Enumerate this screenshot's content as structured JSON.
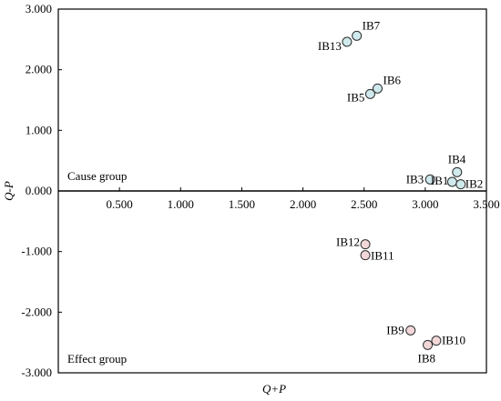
{
  "chart_data": {
    "type": "scatter",
    "xlabel": "Q+P",
    "ylabel": "Q-P",
    "xlim": [
      0,
      3.5
    ],
    "ylim": [
      -3.0,
      3.0
    ],
    "x_ticks": [
      "0.500",
      "1.000",
      "1.500",
      "2.000",
      "2.500",
      "3.000",
      "3.500"
    ],
    "y_ticks": [
      "3.000",
      "2.000",
      "1.000",
      "0.000",
      "-1.000",
      "-2.000",
      "-3.000"
    ],
    "grid": false,
    "annotations": {
      "upper": "Cause group",
      "lower": "Effect group"
    },
    "points": [
      {
        "label": "IB1",
        "x": 3.22,
        "y": 0.15,
        "group": "cause"
      },
      {
        "label": "IB2",
        "x": 3.29,
        "y": 0.11,
        "group": "cause"
      },
      {
        "label": "IB3",
        "x": 3.04,
        "y": 0.19,
        "group": "cause"
      },
      {
        "label": "IB4",
        "x": 3.26,
        "y": 0.31,
        "group": "cause"
      },
      {
        "label": "IB5",
        "x": 2.55,
        "y": 1.6,
        "group": "cause"
      },
      {
        "label": "IB6",
        "x": 2.61,
        "y": 1.69,
        "group": "cause"
      },
      {
        "label": "IB7",
        "x": 2.44,
        "y": 2.56,
        "group": "cause"
      },
      {
        "label": "IB13",
        "x": 2.36,
        "y": 2.46,
        "group": "cause"
      },
      {
        "label": "IB8",
        "x": 3.02,
        "y": -2.54,
        "group": "effect"
      },
      {
        "label": "IB9",
        "x": 2.88,
        "y": -2.3,
        "group": "effect"
      },
      {
        "label": "IB10",
        "x": 3.09,
        "y": -2.47,
        "group": "effect"
      },
      {
        "label": "IB11",
        "x": 2.51,
        "y": -1.06,
        "group": "effect"
      },
      {
        "label": "IB12",
        "x": 2.51,
        "y": -0.88,
        "group": "effect"
      }
    ],
    "colors": {
      "cause": "#cfe9ec",
      "effect": "#f2d7d8",
      "stroke": "#2b2b2b"
    }
  }
}
